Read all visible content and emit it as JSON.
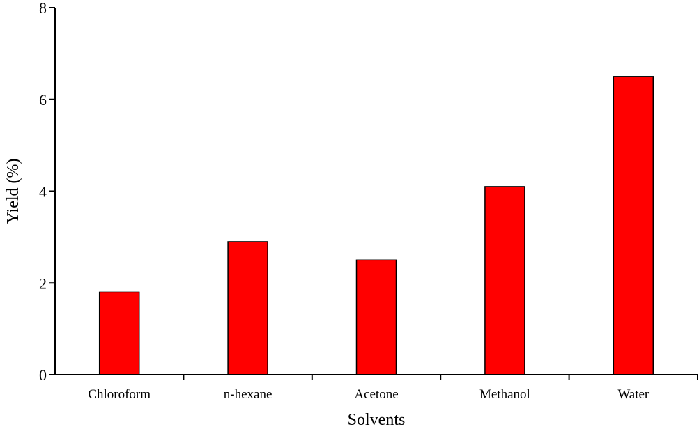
{
  "chart_data": {
    "type": "bar",
    "title": "",
    "xlabel": "Solvents",
    "ylabel": "Yield (%)",
    "categories": [
      "Chloroform",
      "n-hexane",
      "Acetone",
      "Methanol",
      "Water"
    ],
    "values": [
      1.8,
      2.9,
      2.5,
      4.1,
      6.5
    ],
    "ylim": [
      0,
      8
    ],
    "yticks": [
      "0",
      "2",
      "4",
      "6",
      "8"
    ],
    "grid": false,
    "legend": "none",
    "bar_color": "#FF0000",
    "bar_edge_color": "#000000"
  }
}
